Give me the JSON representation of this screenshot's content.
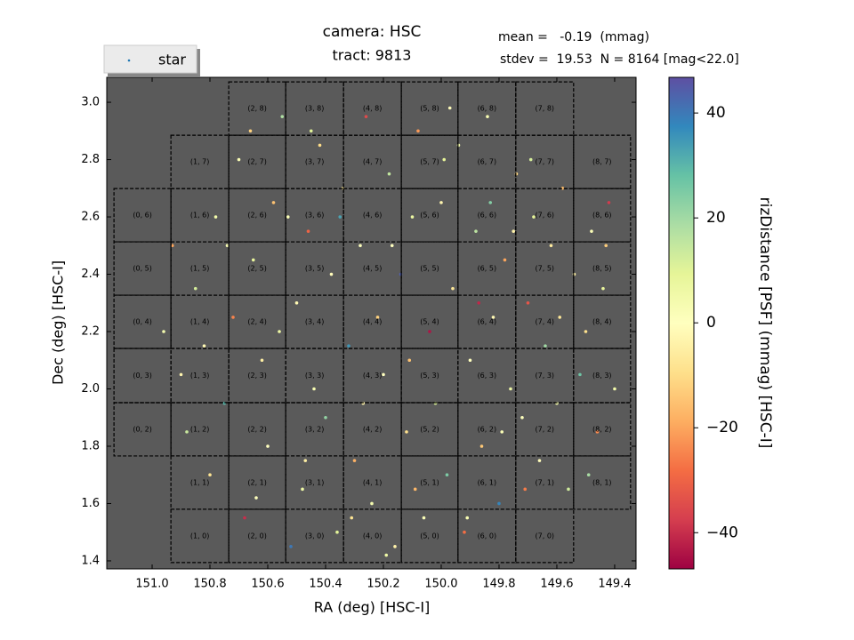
{
  "chart_data": {
    "type": "scatter",
    "title": "camera: HSC",
    "subtitle": "tract: 9813",
    "annotations": [
      "mean =   -0.19  (mmag)",
      "stdev =  19.53  N = 8164 [mag<22.0]"
    ],
    "x_label": "RA (deg) [HSC-I]",
    "y_label": "Dec (deg) [HSC-I]",
    "colorbar_label": "rizDistance [PSF] (mmag) [HSC-I]",
    "legend": "upper left",
    "background": "#5a5a5a",
    "xlim": [
      151.157,
      149.326
    ],
    "ylim": [
      1.372,
      3.087
    ],
    "xticks": [
      {
        "value": 151,
        "label": "151.0"
      },
      150.8,
      150.6,
      150.4,
      150.2,
      {
        "value": 150,
        "label": "150.0"
      },
      149.8,
      149.6,
      149.4
    ],
    "yticks": [
      1.4,
      1.6,
      1.8,
      {
        "value": 2,
        "label": "2.0"
      },
      2.2,
      2.4,
      2.6,
      2.8,
      {
        "value": 3,
        "label": "3.0"
      }
    ],
    "clim": [
      -46.9,
      46.8
    ],
    "cticks": [
      {
        "value": -40,
        "label": "−40"
      },
      {
        "value": -20,
        "label": "−20"
      },
      0,
      20,
      40
    ],
    "colormap": [
      "#9e0142",
      "#d53e4f",
      "#f46d43",
      "#fdae61",
      "#fee08b",
      "#ffffbf",
      "#e6f598",
      "#abdda4",
      "#66c2a5",
      "#3288bd",
      "#5e4fa2"
    ],
    "series": [
      {
        "name": "star",
        "color": "#1f77b4",
        "x": [
          150.9,
          150.85,
          150.8,
          150.78,
          150.75,
          150.72,
          150.7,
          150.68,
          150.65,
          150.62,
          150.6,
          150.58,
          150.55,
          150.52,
          150.5,
          150.48,
          150.46,
          150.44,
          150.42,
          150.4,
          150.38,
          150.36,
          150.34,
          150.32,
          150.3,
          150.28,
          150.26,
          150.24,
          150.22,
          150.2,
          150.18,
          150.16,
          150.14,
          150.12,
          150.1,
          150.08,
          150.06,
          150.04,
          150.02,
          150.0,
          149.98,
          149.96,
          149.94,
          149.92,
          149.9,
          149.88,
          149.86,
          149.84,
          149.82,
          149.8,
          149.78,
          149.76,
          149.74,
          149.72,
          149.7,
          149.68,
          149.66,
          149.64,
          149.62,
          149.6,
          149.58,
          149.56,
          149.54,
          149.52,
          149.5,
          149.48,
          149.46,
          149.44,
          149.42,
          149.4,
          150.88,
          150.82,
          150.74,
          150.66,
          150.56,
          150.47,
          150.35,
          150.27,
          150.17,
          150.09,
          149.99,
          149.87,
          149.79,
          149.69,
          149.59,
          149.49,
          149.43,
          150.96,
          150.93,
          150.64,
          150.31,
          149.91,
          149.71,
          150.45,
          149.97,
          150.19,
          149.75,
          150.53,
          150.11,
          149.83
        ],
        "y": [
          2.05,
          2.35,
          1.7,
          2.6,
          1.95,
          2.25,
          2.8,
          1.55,
          2.45,
          2.1,
          1.8,
          2.65,
          2.95,
          1.45,
          2.3,
          1.65,
          2.55,
          2.0,
          2.85,
          1.9,
          2.4,
          1.5,
          2.7,
          2.15,
          1.75,
          2.5,
          2.95,
          1.6,
          2.25,
          2.05,
          2.75,
          1.45,
          2.4,
          1.85,
          2.6,
          2.9,
          1.55,
          2.2,
          1.95,
          2.65,
          1.7,
          2.35,
          2.85,
          1.5,
          2.1,
          2.55,
          1.8,
          2.95,
          2.25,
          1.6,
          2.45,
          2.0,
          2.75,
          1.9,
          2.3,
          2.6,
          1.75,
          2.15,
          2.5,
          1.95,
          2.7,
          1.65,
          2.4,
          2.05,
          2.2,
          2.55,
          1.85,
          2.35,
          2.65,
          2.0,
          1.85,
          2.15,
          2.5,
          2.9,
          2.2,
          1.75,
          2.6,
          1.95,
          2.5,
          1.65,
          2.8,
          2.3,
          1.85,
          2.8,
          2.25,
          1.7,
          2.5,
          2.2,
          2.5,
          1.62,
          1.55,
          1.55,
          1.65,
          2.9,
          2.98,
          1.42,
          2.55,
          2.6,
          2.1,
          2.65
        ],
        "values": [
          -3,
          12,
          -8,
          5,
          30,
          -25,
          2,
          -40,
          8,
          -5,
          0,
          -15,
          18,
          40,
          -2,
          6,
          -30,
          3,
          -10,
          22,
          -1,
          10,
          -6,
          35,
          -18,
          1,
          -35,
          4,
          -12,
          0,
          15,
          -4,
          44,
          -9,
          7,
          -22,
          2,
          -44,
          11,
          -3,
          25,
          -7,
          5,
          -28,
          0,
          16,
          -14,
          3,
          -2,
          38,
          -20,
          6,
          -11,
          1,
          -33,
          9,
          -1,
          20,
          -6,
          4,
          -16,
          13,
          -4,
          27,
          -9,
          2,
          -24,
          8,
          -38,
          5,
          14,
          -2,
          3,
          -12,
          6,
          -5,
          33,
          -3,
          0,
          -17,
          9,
          -41,
          2,
          12,
          -7,
          19,
          -13,
          4,
          -20,
          1,
          -8,
          3,
          -26,
          10,
          -1,
          6,
          -4,
          2,
          -15,
          24
        ]
      }
    ],
    "patches": [
      {
        "label": "(1, 0)",
        "ra": [
          150.935,
          150.735
        ],
        "dec": [
          1.394,
          1.58
        ]
      },
      {
        "label": "(2, 0)",
        "ra": [
          150.735,
          150.538
        ],
        "dec": [
          1.394,
          1.58
        ]
      },
      {
        "label": "(3, 0)",
        "ra": [
          150.538,
          150.338
        ],
        "dec": [
          1.394,
          1.58
        ]
      },
      {
        "label": "(4, 0)",
        "ra": [
          150.338,
          150.138
        ],
        "dec": [
          1.394,
          1.58
        ]
      },
      {
        "label": "(5, 0)",
        "ra": [
          150.138,
          149.942
        ],
        "dec": [
          1.394,
          1.58
        ]
      },
      {
        "label": "(6, 0)",
        "ra": [
          149.942,
          149.742
        ],
        "dec": [
          1.394,
          1.58
        ]
      },
      {
        "label": "(7, 0)",
        "ra": [
          149.742,
          149.542
        ],
        "dec": [
          1.394,
          1.58
        ]
      },
      {
        "label": "(1, 1)",
        "ra": [
          150.935,
          150.735
        ],
        "dec": [
          1.58,
          1.766
        ]
      },
      {
        "label": "(2, 1)",
        "ra": [
          150.735,
          150.538
        ],
        "dec": [
          1.58,
          1.766
        ]
      },
      {
        "label": "(3, 1)",
        "ra": [
          150.538,
          150.338
        ],
        "dec": [
          1.58,
          1.766
        ]
      },
      {
        "label": "(4, 1)",
        "ra": [
          150.338,
          150.138
        ],
        "dec": [
          1.58,
          1.766
        ]
      },
      {
        "label": "(5, 1)",
        "ra": [
          150.138,
          149.942
        ],
        "dec": [
          1.58,
          1.766
        ]
      },
      {
        "label": "(6, 1)",
        "ra": [
          149.942,
          149.742
        ],
        "dec": [
          1.58,
          1.766
        ]
      },
      {
        "label": "(7, 1)",
        "ra": [
          149.742,
          149.542
        ],
        "dec": [
          1.58,
          1.766
        ]
      },
      {
        "label": "(8, 1)",
        "ra": [
          149.542,
          149.345
        ],
        "dec": [
          1.58,
          1.766
        ]
      },
      {
        "label": "(0, 2)",
        "ra": [
          151.132,
          150.935
        ],
        "dec": [
          1.766,
          1.952
        ]
      },
      {
        "label": "(1, 2)",
        "ra": [
          150.935,
          150.735
        ],
        "dec": [
          1.766,
          1.952
        ]
      },
      {
        "label": "(2, 2)",
        "ra": [
          150.735,
          150.538
        ],
        "dec": [
          1.766,
          1.952
        ]
      },
      {
        "label": "(3, 2)",
        "ra": [
          150.538,
          150.338
        ],
        "dec": [
          1.766,
          1.952
        ]
      },
      {
        "label": "(4, 2)",
        "ra": [
          150.338,
          150.138
        ],
        "dec": [
          1.766,
          1.952
        ]
      },
      {
        "label": "(5, 2)",
        "ra": [
          150.138,
          149.942
        ],
        "dec": [
          1.766,
          1.952
        ]
      },
      {
        "label": "(6, 2)",
        "ra": [
          149.942,
          149.742
        ],
        "dec": [
          1.766,
          1.952
        ]
      },
      {
        "label": "(7, 2)",
        "ra": [
          149.742,
          149.542
        ],
        "dec": [
          1.766,
          1.952
        ]
      },
      {
        "label": "(8, 2)",
        "ra": [
          149.542,
          149.345
        ],
        "dec": [
          1.766,
          1.952
        ]
      },
      {
        "label": "(0, 3)",
        "ra": [
          151.132,
          150.935
        ],
        "dec": [
          1.952,
          2.141
        ]
      },
      {
        "label": "(1, 3)",
        "ra": [
          150.935,
          150.735
        ],
        "dec": [
          1.952,
          2.141
        ]
      },
      {
        "label": "(2, 3)",
        "ra": [
          150.735,
          150.538
        ],
        "dec": [
          1.952,
          2.141
        ]
      },
      {
        "label": "(3, 3)",
        "ra": [
          150.538,
          150.338
        ],
        "dec": [
          1.952,
          2.141
        ]
      },
      {
        "label": "(4, 3)",
        "ra": [
          150.338,
          150.138
        ],
        "dec": [
          1.952,
          2.141
        ]
      },
      {
        "label": "(5, 3)",
        "ra": [
          150.138,
          149.942
        ],
        "dec": [
          1.952,
          2.141
        ]
      },
      {
        "label": "(6, 3)",
        "ra": [
          149.942,
          149.742
        ],
        "dec": [
          1.952,
          2.141
        ]
      },
      {
        "label": "(7, 3)",
        "ra": [
          149.742,
          149.542
        ],
        "dec": [
          1.952,
          2.141
        ]
      },
      {
        "label": "(8, 3)",
        "ra": [
          149.542,
          149.345
        ],
        "dec": [
          1.952,
          2.141
        ]
      },
      {
        "label": "(0, 4)",
        "ra": [
          151.132,
          150.935
        ],
        "dec": [
          2.141,
          2.327
        ]
      },
      {
        "label": "(1, 4)",
        "ra": [
          150.935,
          150.735
        ],
        "dec": [
          2.141,
          2.327
        ]
      },
      {
        "label": "(2, 4)",
        "ra": [
          150.735,
          150.538
        ],
        "dec": [
          2.141,
          2.327
        ]
      },
      {
        "label": "(3, 4)",
        "ra": [
          150.538,
          150.338
        ],
        "dec": [
          2.141,
          2.327
        ]
      },
      {
        "label": "(4, 4)",
        "ra": [
          150.338,
          150.138
        ],
        "dec": [
          2.141,
          2.327
        ]
      },
      {
        "label": "(5, 4)",
        "ra": [
          150.138,
          149.942
        ],
        "dec": [
          2.141,
          2.327
        ]
      },
      {
        "label": "(6, 4)",
        "ra": [
          149.942,
          149.742
        ],
        "dec": [
          2.141,
          2.327
        ]
      },
      {
        "label": "(7, 4)",
        "ra": [
          149.742,
          149.542
        ],
        "dec": [
          2.141,
          2.327
        ]
      },
      {
        "label": "(8, 4)",
        "ra": [
          149.542,
          149.345
        ],
        "dec": [
          2.141,
          2.327
        ]
      },
      {
        "label": "(0, 5)",
        "ra": [
          151.132,
          150.935
        ],
        "dec": [
          2.327,
          2.513
        ]
      },
      {
        "label": "(1, 5)",
        "ra": [
          150.935,
          150.735
        ],
        "dec": [
          2.327,
          2.513
        ]
      },
      {
        "label": "(2, 5)",
        "ra": [
          150.735,
          150.538
        ],
        "dec": [
          2.327,
          2.513
        ]
      },
      {
        "label": "(3, 5)",
        "ra": [
          150.538,
          150.338
        ],
        "dec": [
          2.327,
          2.513
        ]
      },
      {
        "label": "(4, 5)",
        "ra": [
          150.338,
          150.138
        ],
        "dec": [
          2.327,
          2.513
        ]
      },
      {
        "label": "(5, 5)",
        "ra": [
          150.138,
          149.942
        ],
        "dec": [
          2.327,
          2.513
        ]
      },
      {
        "label": "(6, 5)",
        "ra": [
          149.942,
          149.742
        ],
        "dec": [
          2.327,
          2.513
        ]
      },
      {
        "label": "(7, 5)",
        "ra": [
          149.742,
          149.542
        ],
        "dec": [
          2.327,
          2.513
        ]
      },
      {
        "label": "(8, 5)",
        "ra": [
          149.542,
          149.345
        ],
        "dec": [
          2.327,
          2.513
        ]
      },
      {
        "label": "(0, 6)",
        "ra": [
          151.132,
          150.935
        ],
        "dec": [
          2.513,
          2.699
        ]
      },
      {
        "label": "(1, 6)",
        "ra": [
          150.935,
          150.735
        ],
        "dec": [
          2.513,
          2.699
        ]
      },
      {
        "label": "(2, 6)",
        "ra": [
          150.735,
          150.538
        ],
        "dec": [
          2.513,
          2.699
        ]
      },
      {
        "label": "(3, 6)",
        "ra": [
          150.538,
          150.338
        ],
        "dec": [
          2.513,
          2.699
        ]
      },
      {
        "label": "(4, 6)",
        "ra": [
          150.338,
          150.138
        ],
        "dec": [
          2.513,
          2.699
        ]
      },
      {
        "label": "(5, 6)",
        "ra": [
          150.138,
          149.942
        ],
        "dec": [
          2.513,
          2.699
        ]
      },
      {
        "label": "(6, 6)",
        "ra": [
          149.942,
          149.742
        ],
        "dec": [
          2.513,
          2.699
        ]
      },
      {
        "label": "(7, 6)",
        "ra": [
          149.742,
          149.542
        ],
        "dec": [
          2.513,
          2.699
        ]
      },
      {
        "label": "(8, 6)",
        "ra": [
          149.542,
          149.345
        ],
        "dec": [
          2.513,
          2.699
        ]
      },
      {
        "label": "(1, 7)",
        "ra": [
          150.935,
          150.735
        ],
        "dec": [
          2.699,
          2.885
        ]
      },
      {
        "label": "(2, 7)",
        "ra": [
          150.735,
          150.538
        ],
        "dec": [
          2.699,
          2.885
        ]
      },
      {
        "label": "(3, 7)",
        "ra": [
          150.538,
          150.338
        ],
        "dec": [
          2.699,
          2.885
        ]
      },
      {
        "label": "(4, 7)",
        "ra": [
          150.338,
          150.138
        ],
        "dec": [
          2.699,
          2.885
        ]
      },
      {
        "label": "(5, 7)",
        "ra": [
          150.138,
          149.942
        ],
        "dec": [
          2.699,
          2.885
        ]
      },
      {
        "label": "(6, 7)",
        "ra": [
          149.942,
          149.742
        ],
        "dec": [
          2.699,
          2.885
        ]
      },
      {
        "label": "(7, 7)",
        "ra": [
          149.742,
          149.542
        ],
        "dec": [
          2.699,
          2.885
        ]
      },
      {
        "label": "(8, 7)",
        "ra": [
          149.542,
          149.345
        ],
        "dec": [
          2.699,
          2.885
        ]
      },
      {
        "label": "(2, 8)",
        "ra": [
          150.735,
          150.538
        ],
        "dec": [
          2.885,
          3.071
        ]
      },
      {
        "label": "(3, 8)",
        "ra": [
          150.538,
          150.338
        ],
        "dec": [
          2.885,
          3.071
        ]
      },
      {
        "label": "(4, 8)",
        "ra": [
          150.338,
          150.138
        ],
        "dec": [
          2.885,
          3.071
        ]
      },
      {
        "label": "(5, 8)",
        "ra": [
          150.138,
          149.942
        ],
        "dec": [
          2.885,
          3.071
        ]
      },
      {
        "label": "(6, 8)",
        "ra": [
          149.942,
          149.742
        ],
        "dec": [
          2.885,
          3.071
        ]
      },
      {
        "label": "(7, 8)",
        "ra": [
          149.742,
          149.542
        ],
        "dec": [
          2.885,
          3.071
        ]
      }
    ]
  }
}
